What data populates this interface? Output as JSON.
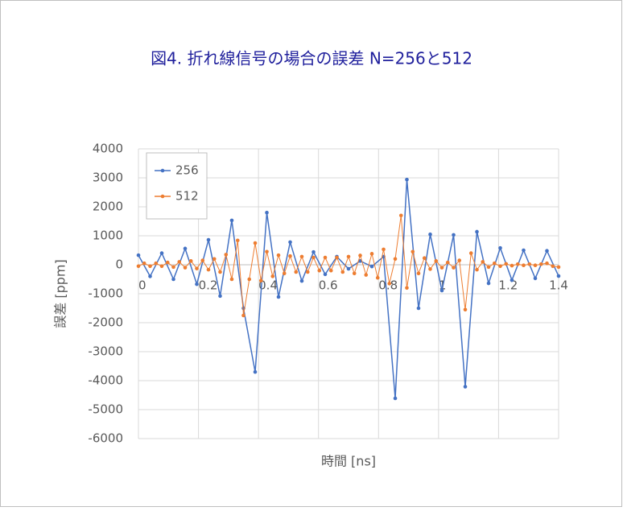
{
  "chart_data": {
    "type": "line",
    "title": "図4. 折れ線信号の場合の誤差 N=256と512",
    "x_label": "時間 [ns]",
    "y_label": "誤差 [ppm]",
    "xlim": [
      0,
      1.4
    ],
    "xticks": [
      0,
      0.2,
      0.4,
      0.6,
      0.8,
      1,
      1.2,
      1.4
    ],
    "ylim": [
      -6000,
      4000
    ],
    "yticks": [
      -6000,
      -5000,
      -4000,
      -3000,
      -2000,
      -1000,
      0,
      1000,
      2000,
      3000,
      4000
    ],
    "grid": true,
    "legend": "top-left",
    "series": [
      {
        "name": "256",
        "color": "#4472c4",
        "x": [
          0,
          0.0389,
          0.0778,
          0.1167,
          0.1556,
          0.1944,
          0.2333,
          0.2722,
          0.3111,
          0.35,
          0.3889,
          0.4278,
          0.4667,
          0.5056,
          0.5444,
          0.5833,
          0.6222,
          0.6611,
          0.7,
          0.7389,
          0.7778,
          0.8167,
          0.8556,
          0.8944,
          0.9333,
          0.9722,
          1.0111,
          1.05,
          1.0889,
          1.1278,
          1.1667,
          1.2056,
          1.2444,
          1.2833,
          1.3222,
          1.3611,
          1.4
        ],
        "values": [
          330,
          -400,
          400,
          -500,
          560,
          -670,
          860,
          -1080,
          1530,
          -1500,
          -3700,
          1800,
          -1110,
          780,
          -560,
          440,
          -330,
          280,
          -140,
          130,
          -60,
          280,
          -4610,
          2940,
          -1500,
          1050,
          -890,
          1030,
          -4210,
          1140,
          -640,
          580,
          -530,
          500,
          -470,
          480,
          -390
        ]
      },
      {
        "name": "512",
        "color": "#ed7d31",
        "x": [
          0,
          0.0194,
          0.0389,
          0.0583,
          0.0778,
          0.0972,
          0.1167,
          0.1361,
          0.1556,
          0.175,
          0.1944,
          0.2139,
          0.2333,
          0.2528,
          0.2722,
          0.2917,
          0.3111,
          0.3306,
          0.35,
          0.3694,
          0.3889,
          0.4083,
          0.4278,
          0.4472,
          0.4667,
          0.4861,
          0.5056,
          0.525,
          0.5444,
          0.5639,
          0.5833,
          0.6028,
          0.6222,
          0.6417,
          0.6611,
          0.6806,
          0.7,
          0.7194,
          0.7389,
          0.7583,
          0.7778,
          0.7972,
          0.8167,
          0.8361,
          0.8556,
          0.875,
          0.8944,
          0.9139,
          0.9333,
          0.9528,
          0.9722,
          0.9917,
          1.0111,
          1.0306,
          1.05,
          1.0694,
          1.0889,
          1.1083,
          1.1278,
          1.1472,
          1.1667,
          1.1861,
          1.2056,
          1.225,
          1.2444,
          1.2639,
          1.2833,
          1.3028,
          1.3222,
          1.3417,
          1.3611,
          1.3806,
          1.4
        ],
        "values": [
          -50,
          50,
          -50,
          50,
          -50,
          80,
          -80,
          100,
          -100,
          130,
          -130,
          150,
          -170,
          200,
          -250,
          350,
          -500,
          840,
          -1750,
          -500,
          750,
          -550,
          450,
          -400,
          330,
          -300,
          300,
          -250,
          280,
          -250,
          250,
          -200,
          250,
          -200,
          250,
          -250,
          280,
          -300,
          320,
          -350,
          380,
          -450,
          530,
          -650,
          200,
          1700,
          -800,
          450,
          -300,
          230,
          -150,
          130,
          -100,
          80,
          -100,
          150,
          -1550,
          400,
          -170,
          100,
          -80,
          50,
          -50,
          30,
          -30,
          20,
          -20,
          20,
          -20,
          20,
          50,
          -50,
          -80
        ]
      }
    ]
  }
}
